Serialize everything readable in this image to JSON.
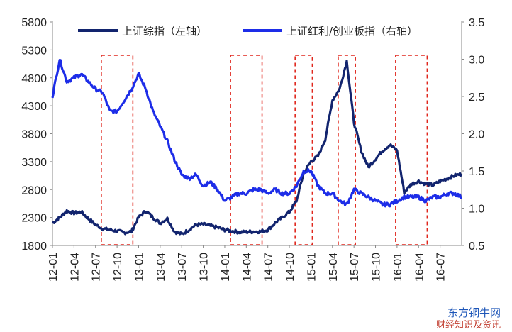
{
  "chart_data": {
    "type": "line",
    "title": "",
    "xlabel": "",
    "ylabel": "",
    "y_left_ticks": [
      "1800",
      "2300",
      "2800",
      "3300",
      "3800",
      "4300",
      "4800",
      "5300",
      "5800"
    ],
    "y_right_ticks": [
      "0.5",
      "1.0",
      "1.5",
      "2.0",
      "2.5",
      "3.0",
      "3.5"
    ],
    "ylim_left": [
      1800,
      5800
    ],
    "ylim_right": [
      0.5,
      3.5
    ],
    "x_ticks": [
      "12-01",
      "12-04",
      "12-07",
      "12-10",
      "13-01",
      "13-04",
      "13-07",
      "13-10",
      "14-01",
      "14-04",
      "14-07",
      "14-10",
      "15-01",
      "15-04",
      "15-07",
      "15-10",
      "16-01",
      "16-04",
      "16-07"
    ],
    "legend_position": "top",
    "series": [
      {
        "name": "上证综指（左轴）",
        "axis": "left",
        "color": "#12246e",
        "x": [
          "12-01",
          "12-02",
          "12-03",
          "12-04",
          "12-05",
          "12-06",
          "12-07",
          "12-08",
          "12-09",
          "12-10",
          "12-11",
          "12-12",
          "13-01",
          "13-02",
          "13-03",
          "13-04",
          "13-05",
          "13-06",
          "13-07",
          "13-08",
          "13-09",
          "13-10",
          "13-11",
          "13-12",
          "14-01",
          "14-02",
          "14-03",
          "14-04",
          "14-05",
          "14-06",
          "14-07",
          "14-08",
          "14-09",
          "14-10",
          "14-11",
          "14-12",
          "15-01",
          "15-02",
          "15-03",
          "15-04",
          "15-05",
          "15-06",
          "15-07",
          "15-08",
          "15-09",
          "15-10",
          "15-11",
          "15-12",
          "16-01",
          "16-02",
          "16-03",
          "16-04",
          "16-05",
          "16-06",
          "16-07",
          "16-08",
          "16-09",
          "16-10"
        ],
        "values": [
          2200,
          2300,
          2420,
          2380,
          2400,
          2280,
          2170,
          2100,
          2080,
          2060,
          2030,
          2050,
          2300,
          2420,
          2300,
          2200,
          2280,
          2050,
          2000,
          2080,
          2170,
          2180,
          2150,
          2120,
          2080,
          2060,
          2040,
          2040,
          2050,
          2050,
          2080,
          2200,
          2300,
          2400,
          2600,
          3100,
          3300,
          3400,
          3700,
          4400,
          4600,
          5100,
          4000,
          3500,
          3200,
          3350,
          3500,
          3600,
          3500,
          2750,
          2900,
          2950,
          2900,
          2880,
          2950,
          3000,
          3050,
          3080
        ]
      },
      {
        "name": "上证红利/创业板指（右轴）",
        "axis": "right",
        "color": "#1d2de8",
        "x": [
          "12-01",
          "12-02",
          "12-03",
          "12-04",
          "12-05",
          "12-06",
          "12-07",
          "12-08",
          "12-09",
          "12-10",
          "12-11",
          "12-12",
          "13-01",
          "13-02",
          "13-03",
          "13-04",
          "13-05",
          "13-06",
          "13-07",
          "13-08",
          "13-09",
          "13-10",
          "13-11",
          "13-12",
          "14-01",
          "14-02",
          "14-03",
          "14-04",
          "14-05",
          "14-06",
          "14-07",
          "14-08",
          "14-09",
          "14-10",
          "14-11",
          "14-12",
          "15-01",
          "15-02",
          "15-03",
          "15-04",
          "15-05",
          "15-06",
          "15-07",
          "15-08",
          "15-09",
          "15-10",
          "15-11",
          "15-12",
          "16-01",
          "16-02",
          "16-03",
          "16-04",
          "16-05",
          "16-06",
          "16-07",
          "16-08",
          "16-09",
          "16-10"
        ],
        "values": [
          2.5,
          3.0,
          2.7,
          2.75,
          2.8,
          2.7,
          2.6,
          2.55,
          2.3,
          2.3,
          2.45,
          2.6,
          2.8,
          2.6,
          2.3,
          2.1,
          1.9,
          1.65,
          1.45,
          1.4,
          1.45,
          1.3,
          1.35,
          1.25,
          1.1,
          1.15,
          1.2,
          1.2,
          1.25,
          1.25,
          1.2,
          1.25,
          1.2,
          1.2,
          1.3,
          1.5,
          1.5,
          1.3,
          1.2,
          1.2,
          1.1,
          1.05,
          1.25,
          1.2,
          1.15,
          1.1,
          1.05,
          1.05,
          1.1,
          1.15,
          1.15,
          1.15,
          1.1,
          1.15,
          1.15,
          1.2,
          1.2,
          1.15
        ]
      }
    ],
    "highlight_boxes": [
      [
        "12-08",
        "12-12"
      ],
      [
        "14-02",
        "14-06"
      ],
      [
        "14-11",
        "15-01"
      ],
      [
        "15-05",
        "15-07"
      ],
      [
        "16-01",
        "16-05"
      ]
    ]
  },
  "watermark": {
    "line1": "东方铜牛网",
    "line2": "财经知识及资讯"
  }
}
